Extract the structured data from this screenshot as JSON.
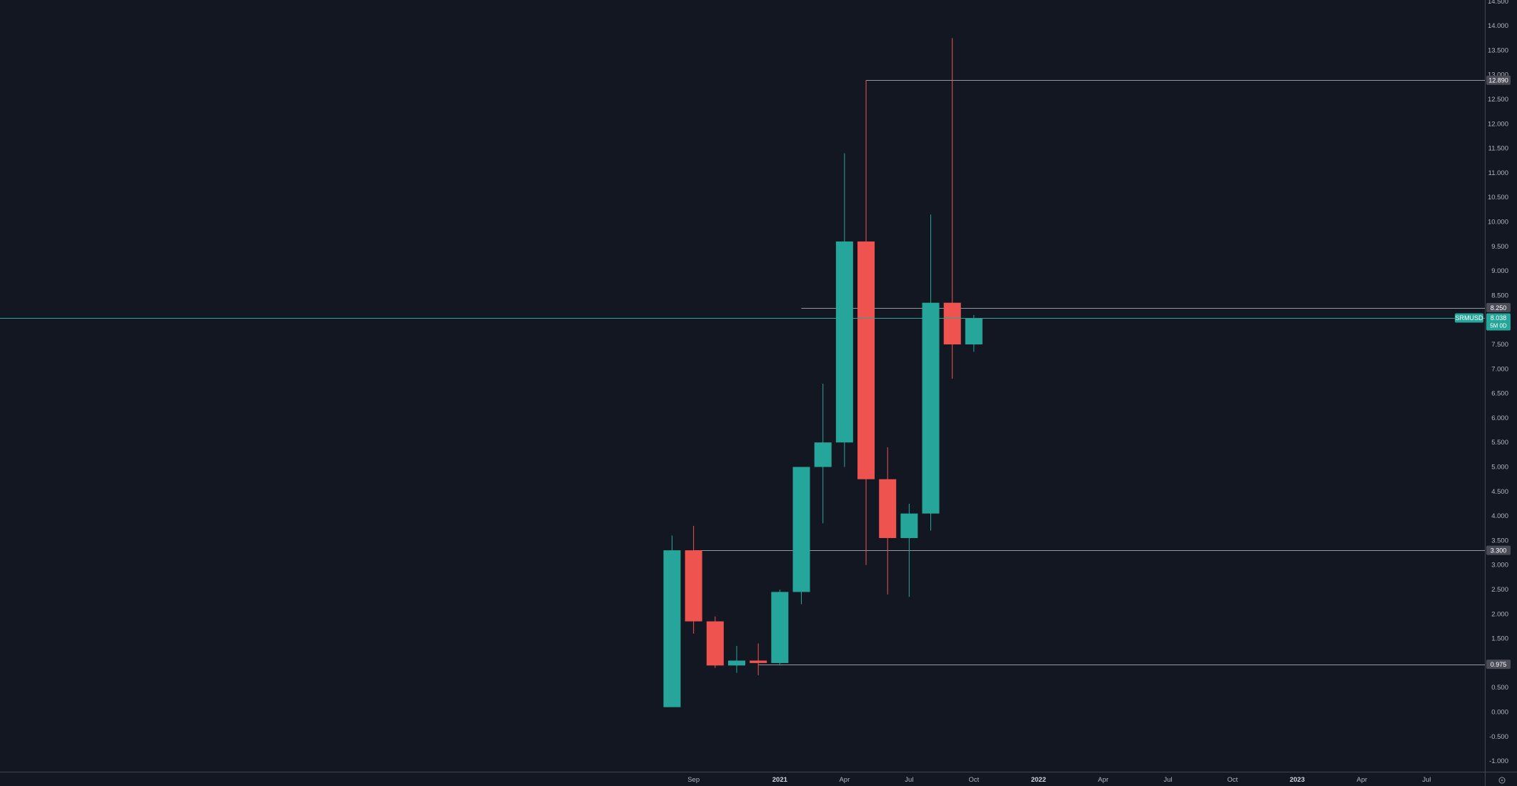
{
  "chart_data": {
    "type": "candlestick",
    "symbol": "SRMUSD",
    "interval": "1M",
    "last_price": "8.038",
    "countdown": "5M 0D",
    "colors": {
      "background": "#131722",
      "up": "#26a69a",
      "down": "#ef5350",
      "axis_text": "#b2b5be",
      "horizontal_lines": "#9598a1",
      "label_bg": "#4a4d57",
      "axis_border": "#434651"
    },
    "y_axis": {
      "range": [
        -1.0,
        14.5
      ],
      "ticks": [
        "-1.000",
        "-0.500",
        "0.000",
        "0.500",
        "1.000",
        "1.500",
        "2.000",
        "2.500",
        "3.000",
        "3.500",
        "4.000",
        "4.500",
        "5.000",
        "5.500",
        "6.000",
        "6.500",
        "7.000",
        "7.500",
        "8.000",
        "8.500",
        "9.000",
        "9.500",
        "10.000",
        "10.500",
        "11.000",
        "11.500",
        "12.000",
        "12.500",
        "13.000",
        "13.500",
        "14.000",
        "14.500"
      ]
    },
    "x_axis": {
      "labels": [
        {
          "text": "Sep",
          "month_index": 1,
          "bold": false
        },
        {
          "text": "2021",
          "month_index": 5,
          "bold": true
        },
        {
          "text": "Apr",
          "month_index": 8,
          "bold": false
        },
        {
          "text": "Jul",
          "month_index": 11,
          "bold": false
        },
        {
          "text": "Oct",
          "month_index": 14,
          "bold": false
        },
        {
          "text": "2022",
          "month_index": 17,
          "bold": true
        },
        {
          "text": "Apr",
          "month_index": 20,
          "bold": false
        },
        {
          "text": "Jul",
          "month_index": 23,
          "bold": false
        },
        {
          "text": "Oct",
          "month_index": 26,
          "bold": false
        },
        {
          "text": "2023",
          "month_index": 29,
          "bold": true
        },
        {
          "text": "Apr",
          "month_index": 32,
          "bold": false
        },
        {
          "text": "Jul",
          "month_index": 35,
          "bold": false
        }
      ]
    },
    "candles": [
      {
        "month": "2020-08",
        "open": 0.1,
        "high": 3.6,
        "low": 0.1,
        "close": 3.3
      },
      {
        "month": "2020-09",
        "open": 3.3,
        "high": 3.8,
        "low": 1.6,
        "close": 1.85
      },
      {
        "month": "2020-10",
        "open": 1.85,
        "high": 1.95,
        "low": 0.9,
        "close": 0.95
      },
      {
        "month": "2020-11",
        "open": 0.95,
        "high": 1.35,
        "low": 0.8,
        "close": 1.05
      },
      {
        "month": "2020-12",
        "open": 1.05,
        "high": 1.4,
        "low": 0.75,
        "close": 1.0
      },
      {
        "month": "2021-01",
        "open": 1.0,
        "high": 2.5,
        "low": 0.95,
        "close": 2.45
      },
      {
        "month": "2021-02",
        "open": 2.45,
        "high": 5.0,
        "low": 2.2,
        "close": 5.0
      },
      {
        "month": "2021-03",
        "open": 5.0,
        "high": 6.7,
        "low": 3.85,
        "close": 5.5
      },
      {
        "month": "2021-04",
        "open": 5.5,
        "high": 11.4,
        "low": 5.0,
        "close": 9.6
      },
      {
        "month": "2021-05",
        "open": 9.6,
        "high": 12.89,
        "low": 3.0,
        "close": 4.75
      },
      {
        "month": "2021-06",
        "open": 4.75,
        "high": 5.4,
        "low": 2.4,
        "close": 3.55
      },
      {
        "month": "2021-07",
        "open": 3.55,
        "high": 4.25,
        "low": 2.35,
        "close": 4.05
      },
      {
        "month": "2021-08",
        "open": 4.05,
        "high": 10.15,
        "low": 3.7,
        "close": 8.35
      },
      {
        "month": "2021-09",
        "open": 8.35,
        "high": 13.75,
        "low": 6.8,
        "close": 7.5
      },
      {
        "month": "2021-10",
        "open": 7.5,
        "high": 8.1,
        "low": 7.35,
        "close": 8.038
      }
    ],
    "levels": [
      {
        "label": "12.890",
        "value": 12.89,
        "start_month_index": 9
      },
      {
        "label": "8.250",
        "value": 8.25,
        "start_month_index": 6
      },
      {
        "label": "3.300",
        "value": 3.3,
        "start_month_index": 1
      },
      {
        "label": "0.975",
        "value": 0.975,
        "start_month_index": 4
      }
    ]
  }
}
